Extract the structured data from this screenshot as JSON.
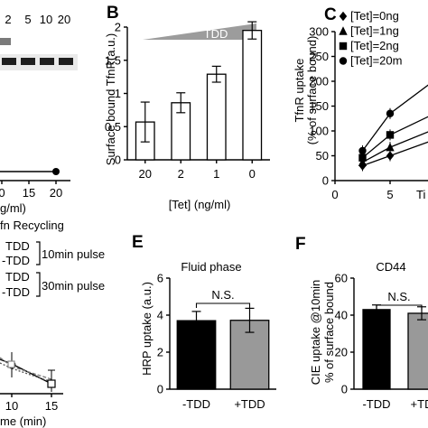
{
  "panel_labels": {
    "b": "B",
    "c": "C",
    "e": "E",
    "f": "F"
  },
  "panel_a_fragment": {
    "lane_labels": [
      "2",
      "5",
      "10",
      "20"
    ],
    "x_tick_labels": [
      "0",
      "15",
      "20"
    ],
    "x_label_fragment": "g/ml)"
  },
  "panel_d_fragment": {
    "title_fragment": "fn Recycling",
    "legend": [
      {
        "name": "TDD"
      },
      {
        "name": "-TDD"
      },
      {
        "name": "TDD"
      },
      {
        "name": "-TDD"
      }
    ],
    "pulse_10": "10min pulse",
    "pulse_30": "30min pulse",
    "x_tick_labels": [
      "10",
      "15"
    ],
    "x_label_fragment": "me (min)"
  },
  "chart_data": [
    {
      "panel": "B",
      "type": "bar",
      "ylabel": "Surface bound TfnR(a.u.)",
      "xlabel": "[Tet] (ng/ml)",
      "categories": [
        "20",
        "2",
        "1",
        "0"
      ],
      "values": [
        0.57,
        0.86,
        1.29,
        1.95
      ],
      "errors": [
        0.3,
        0.15,
        0.12,
        0.13
      ],
      "ylim": [
        0,
        2.0
      ],
      "yticks": [
        "0",
        "0.5",
        "1",
        "1.5",
        "2"
      ],
      "wedge_label": "TDD"
    },
    {
      "panel": "C",
      "type": "line",
      "ylabel_lines": [
        "TfnR uptake",
        "(% of surface bound)"
      ],
      "xlabel_fragment": "Ti",
      "ylim": [
        0,
        300
      ],
      "yticks": [
        "0",
        "50",
        "100",
        "150",
        "200",
        "250",
        "300"
      ],
      "xticks": [
        "0",
        "5",
        "1"
      ],
      "x": [
        2.5,
        5,
        10
      ],
      "series": [
        {
          "name": "[Tet]=0ng",
          "marker": "diamond",
          "values": [
            30,
            50,
            90
          ]
        },
        {
          "name": "[Tet]=1ng",
          "marker": "triangle",
          "values": [
            37,
            67,
            112
          ]
        },
        {
          "name": "[Tet]=2ng",
          "marker": "square",
          "values": [
            46,
            92,
            145
          ]
        },
        {
          "name": "[Tet]=20m",
          "marker": "circle",
          "values": [
            60,
            135,
            218
          ]
        }
      ]
    },
    {
      "panel": "E",
      "type": "bar",
      "title": "Fluid phase",
      "ylabel": "HRP uptake (a.u.)",
      "categories": [
        "-TDD",
        "+TDD"
      ],
      "values": [
        3.7,
        3.72
      ],
      "errors": [
        0.5,
        0.65
      ],
      "colors": [
        "#000000",
        "#999999"
      ],
      "ylim": [
        0,
        6
      ],
      "yticks": [
        "0",
        "2",
        "4",
        "6"
      ],
      "significance": "N.S."
    },
    {
      "panel": "F",
      "type": "bar",
      "title": "CD44",
      "ylabel_lines": [
        "CIE uptake @10min",
        "% of surface bound"
      ],
      "categories": [
        "-TDD",
        "+TD"
      ],
      "values": [
        43,
        41
      ],
      "errors": [
        2.5,
        3.5
      ],
      "colors": [
        "#000000",
        "#999999"
      ],
      "ylim": [
        0,
        60
      ],
      "yticks": [
        "0",
        "20",
        "40",
        "60"
      ],
      "significance": "N.S."
    }
  ]
}
